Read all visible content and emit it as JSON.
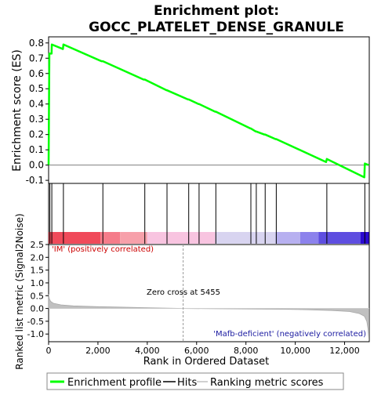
{
  "chart_data": {
    "type": "line",
    "title_line1": "Enrichment plot:",
    "title_line2": "GOCC_PLATELET_DENSE_GRANULE",
    "es_panel": {
      "ylabel": "Enrichment score (ES)",
      "ylim": [
        -0.12,
        0.84
      ],
      "yticks": [
        -0.1,
        0.0,
        0.1,
        0.2,
        0.3,
        0.4,
        0.5,
        0.6,
        0.7,
        0.8
      ],
      "ytick_labels": [
        "-0.1",
        "0.0",
        "0.1",
        "0.2",
        "0.3",
        "0.4",
        "0.5",
        "0.6",
        "0.7",
        "0.8"
      ],
      "line_color": "#00ff00",
      "profile": [
        [
          0,
          0.0
        ],
        [
          30,
          0.73
        ],
        [
          120,
          0.73
        ],
        [
          130,
          0.79
        ],
        [
          580,
          0.76
        ],
        [
          600,
          0.79
        ],
        [
          2150,
          0.68
        ],
        [
          2200,
          0.68
        ],
        [
          3850,
          0.56
        ],
        [
          3900,
          0.56
        ],
        [
          4780,
          0.49
        ],
        [
          4800,
          0.49
        ],
        [
          5650,
          0.43
        ],
        [
          5680,
          0.43
        ],
        [
          6080,
          0.4
        ],
        [
          6100,
          0.4
        ],
        [
          6750,
          0.35
        ],
        [
          6780,
          0.35
        ],
        [
          8180,
          0.24
        ],
        [
          8200,
          0.24
        ],
        [
          8400,
          0.22
        ],
        [
          8420,
          0.22
        ],
        [
          8750,
          0.2
        ],
        [
          8780,
          0.2
        ],
        [
          9200,
          0.17
        ],
        [
          9230,
          0.17
        ],
        [
          11250,
          0.02
        ],
        [
          11280,
          0.04
        ],
        [
          12800,
          -0.08
        ],
        [
          12820,
          0.01
        ],
        [
          12980,
          0.0
        ]
      ]
    },
    "hits": [
      50,
      130,
      600,
      2200,
      3900,
      4800,
      5680,
      6100,
      6780,
      8200,
      8420,
      8780,
      9230,
      11280,
      12820
    ],
    "heat_band": {
      "segments": [
        {
          "start": 0,
          "end": 2100,
          "color": "#f04a5a"
        },
        {
          "start": 2100,
          "end": 2900,
          "color": "#f57c8a"
        },
        {
          "start": 2900,
          "end": 4000,
          "color": "#f7a0aa"
        },
        {
          "start": 4000,
          "end": 6750,
          "color": "#f8c4e0"
        },
        {
          "start": 6750,
          "end": 9200,
          "color": "#d8d4f0"
        },
        {
          "start": 9200,
          "end": 10200,
          "color": "#b7b0f0"
        },
        {
          "start": 10200,
          "end": 10950,
          "color": "#8c82ec"
        },
        {
          "start": 10950,
          "end": 12650,
          "color": "#5e4ee0"
        },
        {
          "start": 12650,
          "end": 12985,
          "color": "#2a0ad0"
        }
      ]
    },
    "rank_panel": {
      "ylabel": "Ranked list metric (Signal2Noise)",
      "ylim": [
        -1.3,
        2.5
      ],
      "yticks": [
        -1.0,
        -0.5,
        0.0,
        0.5,
        1.0,
        1.5,
        2.0,
        2.5
      ],
      "ytick_labels": [
        "-1.0",
        "-0.5",
        "0.0",
        "0.5",
        "1.0",
        "1.5",
        "2.0",
        "2.5"
      ],
      "metric": [
        [
          0,
          0.55
        ],
        [
          30,
          0.38
        ],
        [
          80,
          0.28
        ],
        [
          200,
          0.2
        ],
        [
          500,
          0.14
        ],
        [
          1000,
          0.1
        ],
        [
          2000,
          0.07
        ],
        [
          3000,
          0.05
        ],
        [
          4000,
          0.03
        ],
        [
          5000,
          0.01
        ],
        [
          5455,
          0.0
        ],
        [
          6500,
          -0.01
        ],
        [
          8000,
          -0.02
        ],
        [
          9500,
          -0.03
        ],
        [
          10500,
          -0.05
        ],
        [
          11500,
          -0.08
        ],
        [
          12200,
          -0.12
        ],
        [
          12600,
          -0.2
        ],
        [
          12800,
          -0.3
        ],
        [
          12900,
          -0.5
        ],
        [
          12950,
          -0.8
        ],
        [
          12985,
          -1.25
        ]
      ],
      "zero_cross_rank": 5455,
      "zero_cross_label": "Zero cross at 5455",
      "pos_label": "'IM' (positively correlated)",
      "neg_label": "'Mafb-deficient' (negatively correlated)"
    },
    "xlabel": "Rank in Ordered Dataset",
    "xlim": [
      0,
      13000
    ],
    "xticks": [
      0,
      2000,
      4000,
      6000,
      8000,
      10000,
      12000
    ],
    "xtick_labels": [
      "0",
      "2,000",
      "4,000",
      "6,000",
      "8,000",
      "10,000",
      "12,000"
    ],
    "legend": {
      "placement": "bottom",
      "items": [
        {
          "label": "Enrichment profile",
          "color": "#00ff00"
        },
        {
          "label": "Hits",
          "color": "#000000"
        },
        {
          "label": "Ranking metric scores",
          "color": "#c0c0c0"
        }
      ]
    }
  }
}
